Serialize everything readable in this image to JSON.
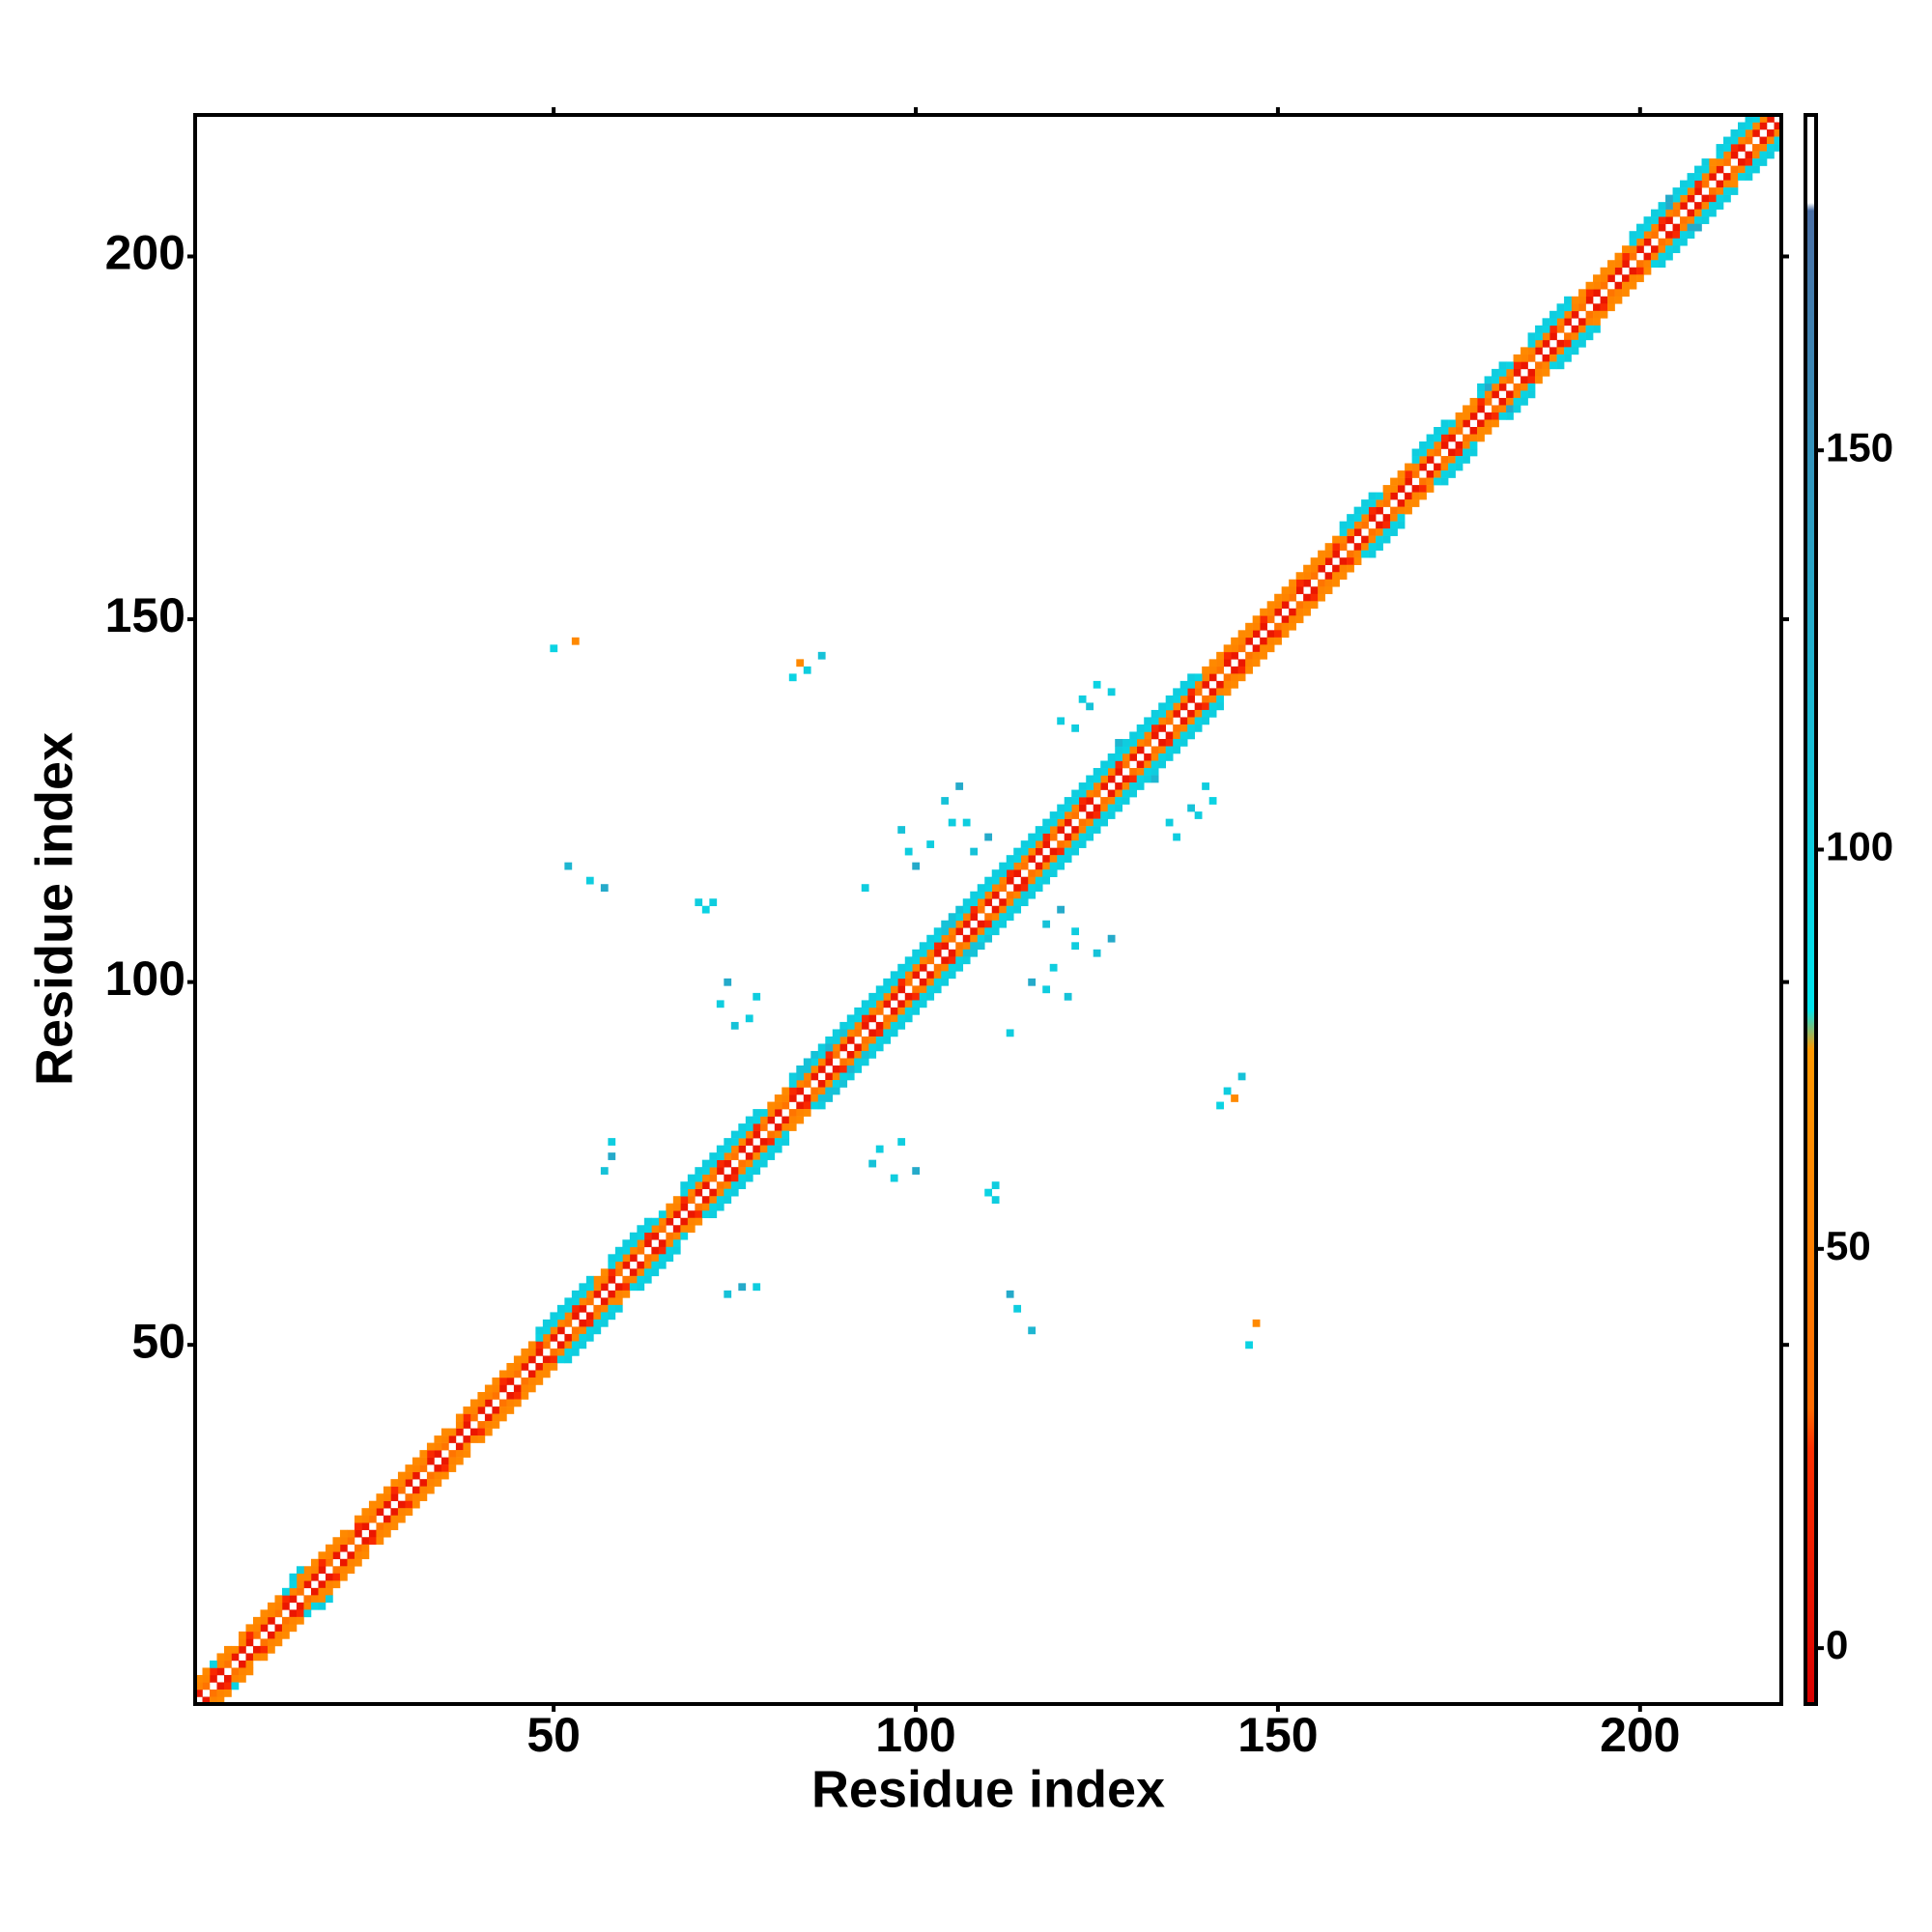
{
  "chart_data": {
    "type": "heatmap",
    "xlabel": "Residue index",
    "ylabel": "Residue index",
    "xlim": [
      0.5,
      219.5
    ],
    "ylim": [
      0.5,
      219.5
    ],
    "xticks": [
      50,
      100,
      150,
      200
    ],
    "yticks": [
      50,
      100,
      150,
      200
    ],
    "colorbar_lim": [
      -7,
      192
    ],
    "colorbar_ticks": [
      0,
      50,
      100,
      150
    ],
    "colorscale": [
      [
        -7,
        "#d90000"
      ],
      [
        25,
        "#ff3000"
      ],
      [
        30,
        "#ff6a00"
      ],
      [
        75,
        "#ff9900"
      ],
      [
        80,
        "#00e5ee"
      ],
      [
        180,
        "#4a6fa5"
      ],
      [
        181,
        "#ffffff"
      ],
      [
        192,
        "#ffffff"
      ]
    ],
    "bands": [
      {
        "offset": 1,
        "values": [
          8,
          40,
          8,
          8,
          40,
          8,
          8,
          8,
          40,
          8,
          8,
          40,
          8,
          8,
          40,
          8,
          8,
          8,
          40,
          8,
          8,
          40,
          8,
          8,
          40,
          8,
          8,
          8,
          40,
          8,
          8,
          40,
          8,
          8,
          40,
          8,
          8,
          8,
          40,
          8,
          8,
          40,
          8,
          8,
          40,
          8,
          8,
          8,
          40,
          8,
          8,
          40,
          8,
          8,
          40,
          8,
          8,
          8,
          40,
          8,
          8,
          40,
          8,
          8,
          40,
          8,
          8,
          8,
          40,
          8,
          8,
          40,
          8,
          8,
          40,
          8,
          8,
          8,
          40,
          8,
          8,
          40,
          8,
          8,
          40,
          8,
          8,
          8,
          40,
          8,
          8,
          40,
          8,
          8,
          40,
          8,
          8,
          8,
          40,
          8,
          8,
          40,
          8,
          8,
          40,
          8,
          8,
          8,
          40,
          8,
          8,
          40,
          8,
          8,
          40,
          8,
          8,
          8,
          40,
          8,
          8,
          40,
          8,
          8,
          40,
          8,
          8,
          8,
          40,
          8,
          8,
          40,
          8,
          8,
          40,
          8,
          8,
          8,
          40,
          8,
          8,
          40,
          8,
          8,
          40,
          8,
          8,
          8,
          40,
          8,
          8,
          40,
          8,
          8,
          40,
          8,
          8,
          8,
          40,
          8,
          8,
          40,
          8,
          8,
          40,
          8,
          8,
          8,
          40,
          8,
          8,
          40,
          8,
          8,
          40,
          8,
          8,
          8,
          40,
          8,
          8,
          40,
          8,
          8,
          40,
          8,
          8,
          8,
          40,
          8,
          8,
          40,
          8,
          8,
          40,
          8,
          8,
          8,
          40,
          8,
          8,
          40,
          8,
          8,
          40,
          8,
          8,
          8,
          40,
          8,
          8,
          40,
          8,
          8,
          40,
          8,
          8,
          8
        ]
      },
      {
        "offset": 2,
        "values": [
          55,
          55,
          20,
          55,
          55,
          60,
          55,
          20,
          55,
          55,
          55,
          55,
          20,
          55,
          55,
          60,
          55,
          20,
          55,
          55,
          55,
          55,
          20,
          55,
          55,
          60,
          55,
          20,
          55,
          55,
          55,
          55,
          20,
          55,
          55,
          60,
          55,
          20,
          55,
          55,
          55,
          55,
          20,
          55,
          55,
          60,
          55,
          20,
          55,
          55,
          55,
          55,
          20,
          55,
          55,
          60,
          55,
          20,
          55,
          55,
          55,
          55,
          20,
          55,
          55,
          60,
          55,
          20,
          55,
          55,
          55,
          55,
          20,
          55,
          55,
          60,
          55,
          20,
          55,
          55,
          55,
          55,
          20,
          55,
          55,
          60,
          55,
          20,
          55,
          55,
          55,
          55,
          20,
          55,
          55,
          60,
          55,
          20,
          55,
          55,
          55,
          55,
          20,
          55,
          55,
          60,
          55,
          20,
          55,
          55,
          55,
          55,
          20,
          55,
          55,
          60,
          55,
          20,
          55,
          55,
          55,
          55,
          20,
          55,
          55,
          60,
          55,
          20,
          55,
          55,
          55,
          55,
          20,
          55,
          55,
          60,
          55,
          20,
          55,
          55,
          55,
          55,
          20,
          55,
          55,
          60,
          55,
          20,
          55,
          55,
          55,
          55,
          20,
          55,
          55,
          60,
          55,
          20,
          55,
          55,
          55,
          55,
          20,
          55,
          55,
          60,
          55,
          20,
          55,
          55,
          55,
          55,
          20,
          55,
          55,
          60,
          55,
          20,
          55,
          55,
          55,
          55,
          20,
          55,
          55,
          60,
          55,
          20,
          55,
          55,
          55,
          55,
          20,
          55,
          55,
          60,
          55,
          20,
          55,
          55,
          55,
          55,
          20,
          55,
          55,
          60,
          55,
          20,
          55,
          55,
          55,
          55,
          20,
          55,
          55,
          60,
          55
        ]
      },
      {
        "offset": 3,
        "values": [
          60,
          60,
          95,
          60,
          60,
          null,
          60,
          60,
          60,
          60,
          60,
          60,
          95,
          95,
          60,
          60,
          60,
          60,
          60,
          60,
          60,
          null,
          60,
          60,
          60,
          60,
          60,
          60,
          60,
          60,
          60,
          60,
          60,
          60,
          60,
          null,
          60,
          60,
          60,
          60,
          60,
          60,
          60,
          60,
          60,
          60,
          60,
          95,
          95,
          95,
          95,
          95,
          95,
          95,
          95,
          60,
          60,
          95,
          95,
          95,
          95,
          95,
          95,
          95,
          95,
          60,
          60,
          95,
          95,
          95,
          95,
          95,
          95,
          95,
          95,
          95,
          95,
          95,
          95,
          60,
          60,
          60,
          95,
          110,
          110,
          95,
          95,
          95,
          95,
          95,
          95,
          95,
          95,
          95,
          95,
          95,
          95,
          95,
          95,
          95,
          95,
          95,
          95,
          110,
          110,
          95,
          95,
          95,
          95,
          95,
          95,
          95,
          95,
          95,
          95,
          95,
          95,
          95,
          95,
          95,
          95,
          95,
          95,
          95,
          95,
          95,
          95,
          95,
          95,
          95,
          95,
          95,
          95,
          95,
          95,
          95,
          95,
          95,
          95,
          60,
          60,
          60,
          60,
          60,
          60,
          60,
          60,
          60,
          60,
          60,
          60,
          60,
          60,
          60,
          60,
          60,
          60,
          60,
          95,
          95,
          95,
          95,
          95,
          95,
          60,
          60,
          60,
          60,
          95,
          95,
          95,
          95,
          95,
          95,
          60,
          60,
          60,
          95,
          130,
          95,
          95,
          95,
          60,
          60,
          95,
          95,
          95,
          95,
          95,
          95,
          60,
          60,
          60,
          60,
          60,
          60,
          60,
          60,
          95,
          95,
          95,
          95,
          95,
          130,
          95,
          95,
          95,
          95,
          95,
          60,
          95,
          95,
          95,
          95,
          95,
          95
        ]
      },
      {
        "offset": 4,
        "values": [
          null,
          null,
          null,
          null,
          null,
          null,
          null,
          null,
          null,
          null,
          null,
          null,
          null,
          100,
          100,
          null,
          null,
          null,
          null,
          null,
          null,
          null,
          null,
          null,
          null,
          null,
          null,
          null,
          null,
          null,
          null,
          null,
          null,
          null,
          null,
          null,
          null,
          null,
          null,
          null,
          null,
          null,
          null,
          null,
          null,
          null,
          null,
          100,
          100,
          100,
          100,
          100,
          100,
          100,
          100,
          null,
          null,
          100,
          100,
          100,
          100,
          100,
          100,
          null,
          null,
          null,
          null,
          100,
          100,
          100,
          100,
          100,
          100,
          100,
          100,
          100,
          100,
          100,
          null,
          null,
          null,
          null,
          100,
          110,
          110,
          110,
          100,
          100,
          100,
          100,
          100,
          100,
          100,
          100,
          100,
          100,
          100,
          100,
          100,
          100,
          100,
          100,
          100,
          110,
          110,
          110,
          100,
          100,
          100,
          100,
          100,
          100,
          100,
          100,
          100,
          100,
          100,
          100,
          100,
          100,
          100,
          100,
          100,
          100,
          100,
          100,
          100,
          100,
          100,
          100,
          100,
          100,
          100,
          100,
          100,
          100,
          100,
          100,
          null,
          null,
          null,
          null,
          null,
          null,
          null,
          null,
          null,
          null,
          null,
          null,
          null,
          null,
          null,
          null,
          null,
          null,
          null,
          null,
          100,
          100,
          100,
          100,
          100,
          null,
          null,
          null,
          null,
          null,
          100,
          100,
          100,
          100,
          100,
          null,
          null,
          null,
          null,
          100,
          100,
          100,
          100,
          null,
          null,
          null,
          100,
          100,
          100,
          100,
          100,
          100,
          null,
          null,
          null,
          null,
          null,
          null,
          null,
          null,
          100,
          100,
          100,
          100,
          100,
          130,
          100,
          100,
          100,
          100,
          100,
          null,
          100,
          100,
          100,
          100,
          100
        ]
      }
    ],
    "contacts": {
      "x": [
        50,
        53,
        55,
        57,
        52,
        57,
        58,
        58,
        71,
        72,
        70,
        73,
        75,
        77,
        78,
        74,
        85,
        84,
        83,
        87,
        105,
        108,
        110,
        112,
        100,
        102,
        104,
        106,
        107,
        120,
        122,
        124,
        127,
        128,
        125,
        123,
        89,
        90,
        88,
        93,
        98,
        99
      ],
      "y": [
        146,
        147,
        114,
        113,
        116,
        74,
        76,
        78,
        110,
        111,
        111,
        97,
        94,
        95,
        98,
        100,
        143,
        144,
        142,
        145,
        122,
        118,
        120,
        115,
        116,
        119,
        125,
        127,
        122,
        136,
        135,
        138,
        140,
        133,
        141,
        139,
        92,
        93,
        91,
        113,
        121,
        118
      ],
      "values": [
        95,
        60,
        100,
        130,
        120,
        110,
        130,
        100,
        95,
        100,
        100,
        100,
        110,
        100,
        100,
        130,
        100,
        60,
        95,
        110,
        100,
        110,
        130,
        100,
        130,
        100,
        110,
        130,
        100,
        100,
        100,
        110,
        100,
        120,
        95,
        100,
        100,
        110,
        120,
        100,
        110,
        100
      ]
    }
  }
}
